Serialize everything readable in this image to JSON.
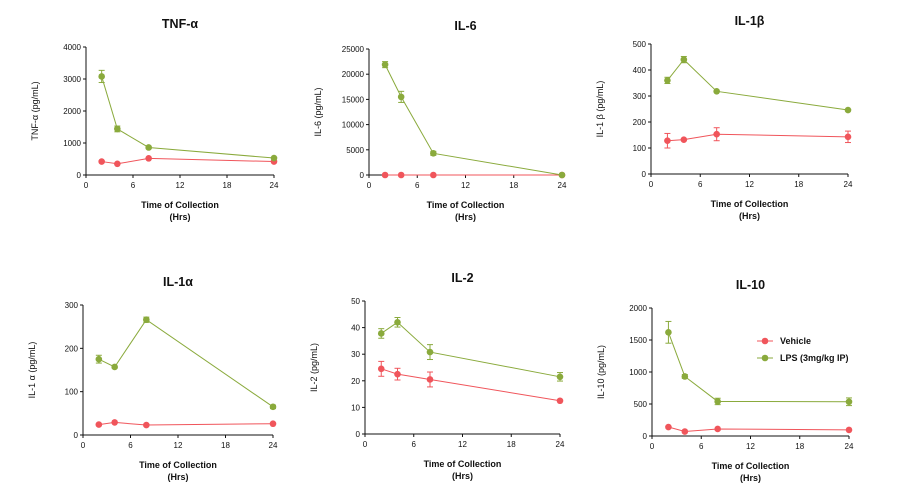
{
  "chart_data": [
    {
      "type": "line",
      "title": "TNF-α",
      "xlabel": "Time of Collection",
      "xlabel_unit": "(Hrs)",
      "ylabel": "TNF-α (pg/mL)",
      "xlim": [
        0,
        24
      ],
      "xticks": [
        0,
        6,
        12,
        18,
        24
      ],
      "ylim": [
        0,
        4000
      ],
      "yticks": [
        0,
        1000,
        2000,
        3000,
        4000
      ],
      "series": [
        {
          "name": "Vehicle",
          "x": [
            2,
            4,
            8,
            24
          ],
          "y": [
            420,
            350,
            520,
            420
          ],
          "err": [
            0,
            0,
            0,
            0
          ]
        },
        {
          "name": "LPS (3mg/kg IP)",
          "x": [
            2,
            4,
            8,
            24
          ],
          "y": [
            3080,
            1440,
            860,
            530
          ],
          "err": [
            190,
            90,
            30,
            20
          ]
        }
      ]
    },
    {
      "type": "line",
      "title": "IL-6",
      "xlabel": "Time of Collection",
      "xlabel_unit": "(Hrs)",
      "ylabel": "IL-6 (pg/mL)",
      "xlim": [
        0,
        24
      ],
      "xticks": [
        0,
        6,
        12,
        18,
        24
      ],
      "ylim": [
        0,
        25000
      ],
      "yticks": [
        0,
        5000,
        10000,
        15000,
        20000,
        25000
      ],
      "series": [
        {
          "name": "Vehicle",
          "x": [
            2,
            4,
            8,
            24
          ],
          "y": [
            0,
            0,
            0,
            0
          ],
          "err": [
            0,
            0,
            0,
            0
          ]
        },
        {
          "name": "LPS (3mg/kg IP)",
          "x": [
            2,
            4,
            8,
            24
          ],
          "y": [
            21900,
            15500,
            4300,
            0
          ],
          "err": [
            600,
            1100,
            400,
            0
          ]
        }
      ]
    },
    {
      "type": "line",
      "title": "IL-1β",
      "xlabel": "Time of Collection",
      "xlabel_unit": "(Hrs)",
      "ylabel": "IL-1 β (pg/mL)",
      "xlim": [
        0,
        24
      ],
      "xticks": [
        0,
        6,
        12,
        18,
        24
      ],
      "ylim": [
        0,
        500
      ],
      "yticks": [
        0,
        100,
        200,
        300,
        400,
        500
      ],
      "series": [
        {
          "name": "Vehicle",
          "x": [
            2,
            4,
            8,
            24
          ],
          "y": [
            128,
            132,
            153,
            143
          ],
          "err": [
            28,
            0,
            25,
            22
          ]
        },
        {
          "name": "LPS (3mg/kg IP)",
          "x": [
            2,
            4,
            8,
            24
          ],
          "y": [
            360,
            440,
            318,
            246
          ],
          "err": [
            12,
            12,
            0,
            0
          ]
        }
      ]
    },
    {
      "type": "line",
      "title": "IL-1α",
      "xlabel": "Time of Collection",
      "xlabel_unit": "(Hrs)",
      "ylabel": "IL-1 α (pg/mL)",
      "xlim": [
        0,
        24
      ],
      "xticks": [
        0,
        6,
        12,
        18,
        24
      ],
      "ylim": [
        0,
        300
      ],
      "yticks": [
        0,
        100,
        200,
        300
      ],
      "series": [
        {
          "name": "Vehicle",
          "x": [
            2,
            4,
            8,
            24
          ],
          "y": [
            24,
            29,
            23,
            26
          ],
          "err": [
            0,
            0,
            0,
            0
          ]
        },
        {
          "name": "LPS (3mg/kg IP)",
          "x": [
            2,
            4,
            8,
            24
          ],
          "y": [
            175,
            157,
            266,
            65
          ],
          "err": [
            9,
            0,
            6,
            4
          ]
        }
      ]
    },
    {
      "type": "line",
      "title": "IL-2",
      "xlabel": "Time of Collection",
      "xlabel_unit": "(Hrs)",
      "ylabel": "IL-2 (pg/mL)",
      "xlim": [
        0,
        24
      ],
      "xticks": [
        0,
        6,
        12,
        18,
        24
      ],
      "ylim": [
        0,
        50
      ],
      "yticks": [
        0,
        10,
        20,
        30,
        40,
        50
      ],
      "series": [
        {
          "name": "Vehicle",
          "x": [
            2,
            4,
            8,
            24
          ],
          "y": [
            24.5,
            22.5,
            20.5,
            12.5
          ],
          "err": [
            2.8,
            2.2,
            2.8,
            0
          ]
        },
        {
          "name": "LPS (3mg/kg IP)",
          "x": [
            2,
            4,
            8,
            24
          ],
          "y": [
            37.8,
            42,
            30.8,
            21.5
          ],
          "err": [
            1.8,
            1.8,
            2.8,
            1.6
          ]
        }
      ]
    },
    {
      "type": "line",
      "title": "IL-10",
      "xlabel": "Time of Collection",
      "xlabel_unit": "(Hrs)",
      "ylabel": "IL-10 (pg/mL)",
      "xlim": [
        0,
        24
      ],
      "xticks": [
        0,
        6,
        12,
        18,
        24
      ],
      "ylim": [
        0,
        2000
      ],
      "yticks": [
        0,
        500,
        1000,
        1500,
        2000
      ],
      "series": [
        {
          "name": "Vehicle",
          "x": [
            2,
            4,
            8,
            24
          ],
          "y": [
            140,
            70,
            110,
            95
          ],
          "err": [
            0,
            0,
            0,
            0
          ]
        },
        {
          "name": "LPS (3mg/kg IP)",
          "x": [
            2,
            4,
            8,
            24
          ],
          "y": [
            1620,
            930,
            540,
            535
          ],
          "err": [
            170,
            30,
            50,
            60
          ]
        }
      ]
    }
  ],
  "legend": {
    "placement": "right-of-bottom-right-panel",
    "entries": [
      {
        "label": "Vehicle",
        "color": "#f0555b"
      },
      {
        "label": "LPS (3mg/kg IP)",
        "color": "#8aaa3c"
      }
    ]
  },
  "colors": {
    "vehicle": "#f0555b",
    "lps": "#8aaa3c",
    "axis": "#111111"
  }
}
